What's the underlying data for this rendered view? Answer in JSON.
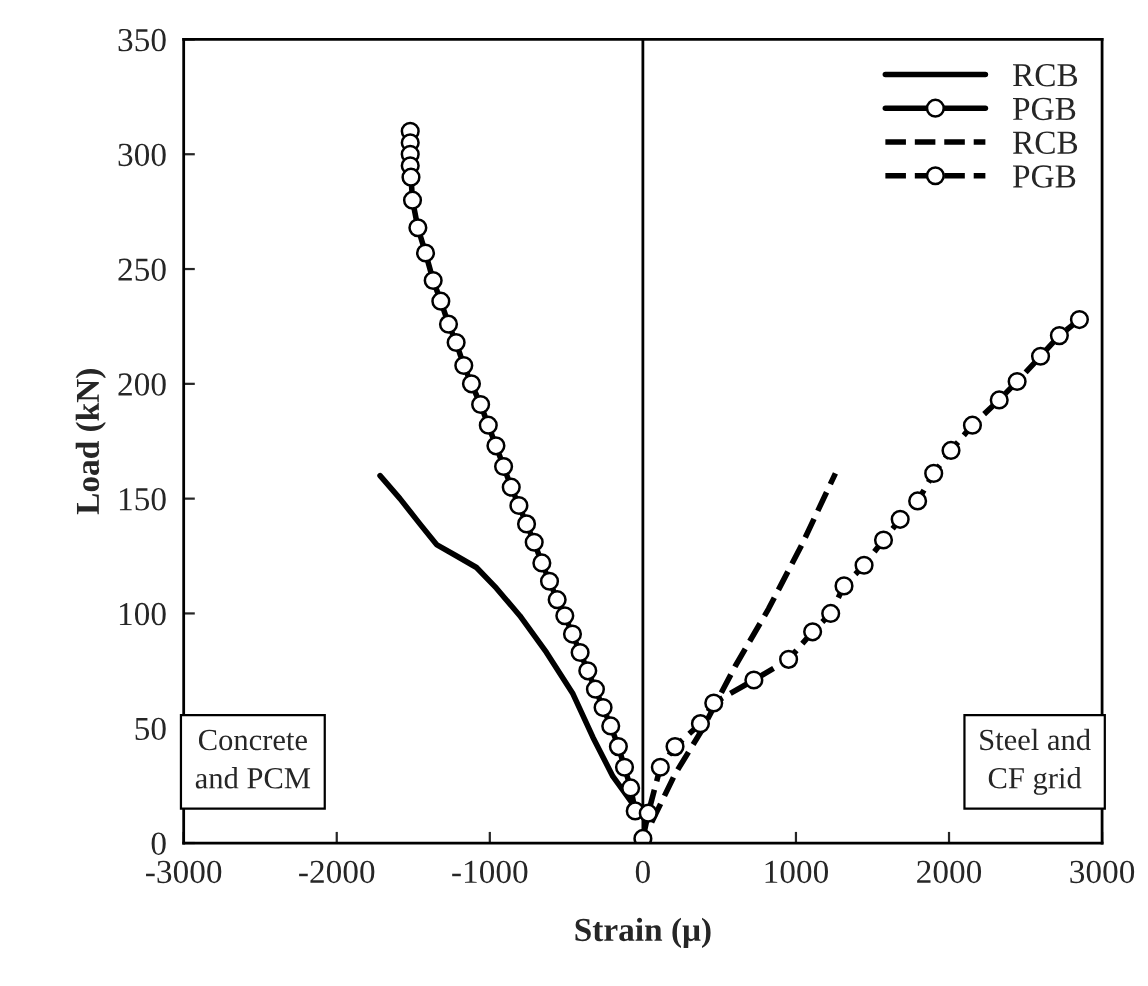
{
  "chart_data": {
    "type": "line",
    "xlabel": "Strain (μ)",
    "ylabel": "Load (kN)",
    "xlim": [
      -3000,
      3000
    ],
    "ylim": [
      0,
      350
    ],
    "xticks": [
      -3000,
      -2000,
      -1000,
      0,
      1000,
      2000,
      3000
    ],
    "yticks": [
      0,
      50,
      100,
      150,
      200,
      250,
      300,
      350
    ],
    "grid": false,
    "legend": "top right",
    "ref_lines": [
      {
        "axis": "x",
        "value": 0,
        "color": "#000000",
        "line_style": "solid"
      }
    ],
    "annotations": [
      "Concrete\nand PCM",
      "Steel and\nCF grid"
    ],
    "series": [
      {
        "name": "RCB",
        "color": "#000000",
        "line_style": "solid",
        "marker": "none",
        "x": [
          -1717,
          -1587,
          -1457,
          -1348,
          -1217,
          -1087,
          -957,
          -804,
          -630,
          -457,
          -326,
          -196,
          -65
        ],
        "values": [
          160,
          150,
          139,
          130,
          125,
          120,
          111,
          99,
          83,
          65,
          46,
          29,
          17
        ]
      },
      {
        "name": "PGB",
        "color": "#000000",
        "line_style": "solid",
        "marker": "circle",
        "x": [
          -1520,
          -1520,
          -1520,
          -1520,
          -1515,
          -1505,
          -1470,
          -1420,
          -1370,
          -1320,
          -1270,
          -1220,
          -1170,
          -1120,
          -1060,
          -1010,
          -960,
          -910,
          -860,
          -810,
          -760,
          -710,
          -660,
          -610,
          -560,
          -510,
          -460,
          -410,
          -360,
          -310,
          -260,
          -210,
          -160,
          -120,
          -80,
          -50
        ],
        "values": [
          310,
          305,
          300,
          295,
          290,
          280,
          268,
          257,
          245,
          236,
          226,
          218,
          208,
          200,
          191,
          182,
          173,
          164,
          155,
          147,
          139,
          131,
          122,
          114,
          106,
          99,
          91,
          83,
          75,
          67,
          59,
          51,
          42,
          33,
          24,
          14
        ]
      },
      {
        "name": "RCB",
        "color": "#000000",
        "line_style": "dashed",
        "marker": "none",
        "x": [
          57,
          210,
          384,
          603,
          821,
          1039,
          1258
        ],
        "values": [
          9,
          30,
          49,
          77,
          102,
          130,
          161
        ]
      },
      {
        "name": "PGB",
        "color": "#000000",
        "line_style": "dashed",
        "marker": "circle",
        "x": [
          0,
          35,
          114,
          210,
          376,
          463,
          725,
          952,
          1109,
          1227,
          1314,
          1445,
          1572,
          1681,
          1795,
          1900,
          2013,
          2153,
          2328,
          2445,
          2598,
          2721,
          2852
        ],
        "values": [
          2,
          13,
          33,
          42,
          52,
          61,
          71,
          80,
          92,
          100,
          112,
          121,
          132,
          141,
          149,
          161,
          171,
          182,
          193,
          201,
          212,
          221,
          228
        ]
      }
    ]
  }
}
